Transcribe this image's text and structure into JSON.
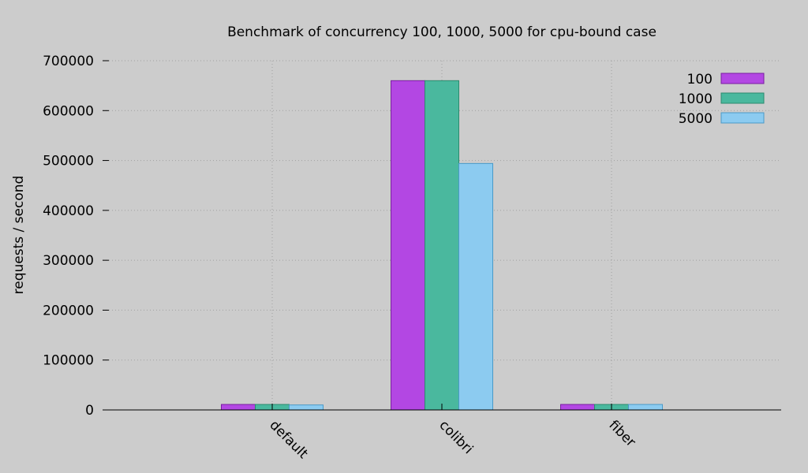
{
  "chart_data": {
    "type": "bar",
    "title": "Benchmark of concurrency 100, 1000, 5000 for cpu-bound case",
    "xlabel": "",
    "ylabel": "requests / second",
    "categories": [
      "default",
      "colibri",
      "fiber"
    ],
    "series": [
      {
        "name": "100",
        "color": "#b347e3",
        "values": [
          11000,
          660000,
          11000
        ]
      },
      {
        "name": "1000",
        "color": "#4ab89e",
        "values": [
          11000,
          660000,
          11000
        ]
      },
      {
        "name": "5000",
        "color": "#8ccbf0",
        "values": [
          10000,
          494000,
          11000
        ]
      }
    ],
    "ylim": [
      0,
      700000
    ],
    "yticks": [
      "0",
      "100000",
      "200000",
      "300000",
      "400000",
      "500000",
      "600000",
      "700000"
    ],
    "grid": true,
    "legend_position": "top-right"
  }
}
